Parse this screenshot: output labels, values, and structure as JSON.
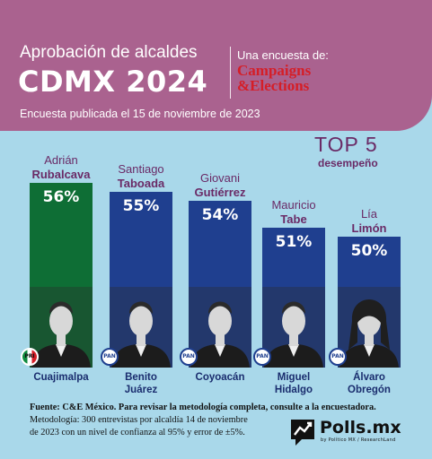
{
  "header": {
    "title": "Aprobación de alcaldes",
    "year_title": "CDMX 2024",
    "survey_label": "Una encuesta de:",
    "brand_line1": "Campaigns",
    "brand_line2": "&Elections",
    "date_line": "Encuesta publicada el 15 de noviembre de 2023"
  },
  "top5": {
    "title": "TOP 5",
    "subtitle": "desempeño"
  },
  "chart_data": {
    "type": "bar",
    "title": "TOP 5 desempeño",
    "categories": [
      "Cuajimalpa",
      "Benito Juárez",
      "Coyoacán",
      "Miguel Hidalgo",
      "Álvaro Obregón"
    ],
    "values": [
      56,
      55,
      54,
      51,
      50
    ],
    "value_labels": [
      "56%",
      "55%",
      "54%",
      "51%",
      "50%"
    ],
    "candidates": [
      {
        "first": "Adrián",
        "last": "Rubalcava",
        "party": "PRI",
        "city_line1": "Cuajimalpa",
        "city_line2": ""
      },
      {
        "first": "Santiago",
        "last": "Taboada",
        "party": "PAN",
        "city_line1": "Benito",
        "city_line2": "Juárez"
      },
      {
        "first": "Giovani",
        "last": "Gutiérrez",
        "party": "PAN",
        "city_line1": "Coyoacán",
        "city_line2": ""
      },
      {
        "first": "Mauricio",
        "last": "Tabe",
        "party": "PAN",
        "city_line1": "Miguel",
        "city_line2": "Hidalgo"
      },
      {
        "first": "Lía",
        "last": "Limón",
        "party": "PAN",
        "city_line1": "Álvaro",
        "city_line2": "Obregón"
      }
    ],
    "colors": {
      "PRI": "#0e6e35",
      "PAN": "#1f3f8f"
    },
    "ylim": [
      0,
      100
    ]
  },
  "footer": {
    "source": "Fuente: C&E México. Para revisar la metodología completa, consulte a la encuestadora.",
    "method_line1": "Metodología: 300 entrevistas por alcaldía 14 de noviembre",
    "method_line2": "de 2023 con un nivel de confianza al 95% y error de ±5%.",
    "logo_text": "Polls.mx",
    "logo_sub": "by Político MX / ResearchLand"
  }
}
